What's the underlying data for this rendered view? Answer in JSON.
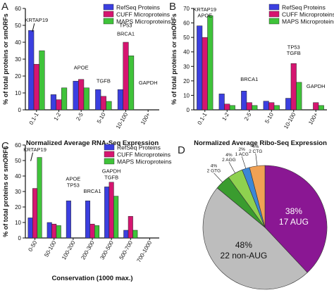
{
  "colors": {
    "refseq": "#3b3fe0",
    "cuff": "#d51570",
    "maps": "#3fc33a",
    "pie_aug": "#8a1793",
    "pie_non_aug": "#bdbdbd",
    "pie_2gtg": "#3a9c2f",
    "pie_2agg": "#8fd14f",
    "pie_1acg": "#3c87d6",
    "pie_2ctg": "#f0a154"
  },
  "panels": [
    {
      "letter": "A",
      "type": "bar",
      "ylabel": "% of total proteins or smORFs",
      "xlabel": "Normalized Average RNA-Seq Expression",
      "ylim": [
        0,
        60
      ],
      "yticks": [
        "0",
        "10",
        "20",
        "30",
        "40",
        "50",
        "60"
      ],
      "categories": [
        "0.1-1",
        "1-2",
        "2-5",
        "5-10",
        "10-100",
        "100+"
      ],
      "series": [
        {
          "name": "RefSeq Proteins",
          "values": [
            47,
            9,
            17,
            12,
            12,
            0
          ]
        },
        {
          "name": "CUFF Microproteins",
          "values": [
            27,
            6,
            18,
            8,
            40,
            0
          ]
        },
        {
          "name": "MAPS Microproteins",
          "values": [
            35,
            13,
            13,
            5,
            32,
            0
          ]
        }
      ],
      "annotations": [
        {
          "text": "KRTAP19",
          "cat": 0,
          "value": 52,
          "arrow": true
        },
        {
          "text": "APOE",
          "cat": 2,
          "value": 24,
          "arrow": false
        },
        {
          "text": "TGFB",
          "cat": 3,
          "value": 16,
          "arrow": false
        },
        {
          "text": "TP53",
          "cat": 4,
          "value": 49,
          "arrow": false
        },
        {
          "text": "BRCA1",
          "cat": 4,
          "value": 44,
          "arrow": false
        },
        {
          "text": "GAPDH",
          "cat": 5,
          "value": 15,
          "arrow": false
        }
      ]
    },
    {
      "letter": "B",
      "type": "bar",
      "ylabel": "% of total proteins or smORFs",
      "xlabel": "Normalized Average Ribo-Seq Expression",
      "ylim": [
        0,
        70
      ],
      "yticks": [
        "0",
        "10",
        "20",
        "30",
        "40",
        "50",
        "60",
        "70"
      ],
      "categories": [
        "0.1-1",
        "1-2",
        "2-5",
        "5-10",
        "10-100",
        "100+"
      ],
      "series": [
        {
          "name": "RefSeq Proteins",
          "values": [
            58,
            11,
            13,
            6,
            8,
            0
          ]
        },
        {
          "name": "CUFF Microproteins",
          "values": [
            50,
            4,
            5,
            5,
            32,
            5
          ]
        },
        {
          "name": "MAPS Microproteins",
          "values": [
            65,
            3,
            3,
            3,
            19,
            3
          ]
        }
      ],
      "annotations": [
        {
          "text": "KRTAP19",
          "cat": 0,
          "value": 68,
          "arrow": false
        },
        {
          "text": "APOE",
          "cat": 0,
          "value": 64,
          "arrow": false
        },
        {
          "text": "BRCA1",
          "cat": 2,
          "value": 20,
          "arrow": false
        },
        {
          "text": "TP53",
          "cat": 4,
          "value": 42,
          "arrow": false
        },
        {
          "text": "TGFB",
          "cat": 4,
          "value": 38,
          "arrow": false
        },
        {
          "text": "GAPDH",
          "cat": 5,
          "value": 15,
          "arrow": false
        }
      ]
    },
    {
      "letter": "C",
      "type": "bar",
      "ylabel": "% of total proteins or smORFs",
      "xlabel": "Conservation (1000 max.)",
      "ylim": [
        0,
        60
      ],
      "yticks": [
        "0",
        "10",
        "20",
        "30",
        "40",
        "50",
        "60"
      ],
      "categories": [
        "0-50",
        "50-100",
        "100-200",
        "200-300",
        "300-500",
        "500-700",
        "700-1000"
      ],
      "series": [
        {
          "name": "RefSeq Proteins",
          "values": [
            13,
            10,
            24,
            24,
            33,
            5,
            0
          ]
        },
        {
          "name": "CUFF Microproteins",
          "values": [
            32,
            9,
            0,
            9,
            36,
            14,
            0
          ]
        },
        {
          "name": "MAPS Microproteins",
          "values": [
            52,
            8,
            0,
            8,
            27,
            5,
            0
          ]
        }
      ],
      "annotations": [
        {
          "text": "KRTAP19",
          "cat": 0,
          "value": 56,
          "arrow": true
        },
        {
          "text": "APOE",
          "cat": 2,
          "value": 37,
          "arrow": false
        },
        {
          "text": "TP53",
          "cat": 2,
          "value": 33,
          "arrow": false
        },
        {
          "text": "BRCA1",
          "cat": 3,
          "value": 29,
          "arrow": false
        },
        {
          "text": "GAPDH",
          "cat": 4,
          "value": 42,
          "arrow": false
        },
        {
          "text": "TGFB",
          "cat": 4,
          "value": 38,
          "arrow": false
        }
      ]
    }
  ],
  "pie": {
    "letter": "D",
    "type": "pie",
    "slices": [
      {
        "label": "17 AUG",
        "percent": 38,
        "label_inside": true
      },
      {
        "label": "22 non-AUG",
        "percent": 48,
        "label_inside": true
      },
      {
        "label": "2 GTG",
        "percent": 4,
        "label_inside": false
      },
      {
        "label": "2 AGG",
        "percent": 4,
        "label_inside": false
      },
      {
        "label": "1 ACG",
        "percent": 2,
        "label_inside": false
      },
      {
        "label": "2 CTG",
        "percent": 4,
        "label_inside": false
      }
    ],
    "percent_labels": [
      "38%",
      "48%",
      "4%",
      "4%",
      "2%",
      "4%"
    ]
  },
  "chart_data": [
    {
      "type": "bar",
      "title": "",
      "xlabel": "Normalized Average RNA-Seq Expression",
      "ylabel": "% of total proteins or smORFs",
      "ylim": [
        0,
        60
      ],
      "categories": [
        "0.1-1",
        "1-2",
        "2-5",
        "5-10",
        "10-100",
        "100+"
      ],
      "series": [
        {
          "name": "RefSeq Proteins",
          "values": [
            47,
            9,
            17,
            12,
            12,
            0
          ]
        },
        {
          "name": "CUFF Microproteins",
          "values": [
            27,
            6,
            18,
            8,
            40,
            0
          ]
        },
        {
          "name": "MAPS Microproteins",
          "values": [
            35,
            13,
            13,
            5,
            32,
            0
          ]
        }
      ],
      "legend": "top-right",
      "grid": false
    },
    {
      "type": "bar",
      "title": "",
      "xlabel": "Normalized Average Ribo-Seq Expression",
      "ylabel": "% of total proteins or smORFs",
      "ylim": [
        0,
        70
      ],
      "categories": [
        "0.1-1",
        "1-2",
        "2-5",
        "5-10",
        "10-100",
        "100+"
      ],
      "series": [
        {
          "name": "RefSeq Proteins",
          "values": [
            58,
            11,
            13,
            6,
            8,
            0
          ]
        },
        {
          "name": "CUFF Microproteins",
          "values": [
            50,
            4,
            5,
            5,
            32,
            5
          ]
        },
        {
          "name": "MAPS Microproteins",
          "values": [
            65,
            3,
            3,
            3,
            19,
            3
          ]
        }
      ],
      "legend": "top-right",
      "grid": false
    },
    {
      "type": "bar",
      "title": "",
      "xlabel": "Conservation (1000 max.)",
      "ylabel": "% of total proteins or smORFs",
      "ylim": [
        0,
        60
      ],
      "categories": [
        "0-50",
        "50-100",
        "100-200",
        "200-300",
        "300-500",
        "500-700",
        "700-1000"
      ],
      "series": [
        {
          "name": "RefSeq Proteins",
          "values": [
            13,
            10,
            24,
            24,
            33,
            5,
            0
          ]
        },
        {
          "name": "CUFF Microproteins",
          "values": [
            32,
            9,
            0,
            9,
            36,
            14,
            0
          ]
        },
        {
          "name": "MAPS Microproteins",
          "values": [
            52,
            8,
            0,
            8,
            27,
            5,
            0
          ]
        }
      ],
      "legend": "top-right",
      "grid": false
    },
    {
      "type": "pie",
      "title": "",
      "labels": [
        "17 AUG",
        "22 non-AUG",
        "2 GTG",
        "2 AGG",
        "1 ACG",
        "2 CTG"
      ],
      "values": [
        38,
        48,
        4,
        4,
        2,
        4
      ]
    }
  ]
}
